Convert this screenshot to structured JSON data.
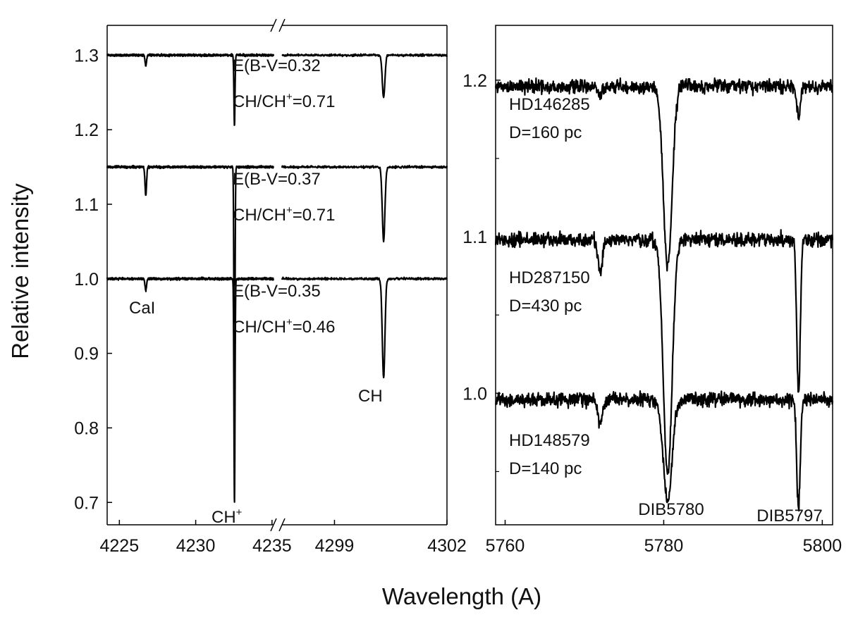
{
  "figure": {
    "ylabel": "Relative intensity",
    "xlabel": "Wavelength (A)"
  },
  "chart_data": [
    {
      "type": "line",
      "title": "",
      "xlabel": "Wavelength (A)",
      "ylabel": "Relative intensity",
      "ylim": [
        0.67,
        1.34
      ],
      "broken_x_axis": true,
      "x_segments": [
        {
          "xlim": [
            4224.2,
            4235.1
          ],
          "ticks": [
            4225,
            4230,
            4235
          ]
        },
        {
          "xlim": [
            4297.6,
            4302.0
          ],
          "ticks": [
            4299,
            4302
          ]
        }
      ],
      "x_tick_labels": [
        "4225",
        "4230",
        "4235",
        "4299",
        "4302"
      ],
      "y_ticks": [
        0.7,
        0.8,
        0.9,
        1.0,
        1.1,
        1.2,
        1.3
      ],
      "y_tick_labels": [
        "0.7",
        "0.8",
        "0.9",
        "1.0",
        "1.1",
        "1.2",
        "1.3"
      ],
      "grid": false,
      "lines": [
        {
          "label": "CaI",
          "x": 4226.73
        },
        {
          "label": "CH⁺",
          "x": 4232.54
        },
        {
          "label": "CH",
          "x": 4300.31
        }
      ],
      "series": [
        {
          "offset": 1.3,
          "depths": {
            "CaI": 0.014,
            "CH⁺": 0.095,
            "CH": 0.057
          },
          "annotations": [
            "E(B-V=0.32",
            "CH/CH",
            "+",
            "=0.71"
          ]
        },
        {
          "offset": 1.15,
          "depths": {
            "CaI": 0.038,
            "CH⁺": 0.35,
            "CH": 0.1
          },
          "annotations": [
            "E(B-V=0.37",
            "CH/CH",
            "+",
            "=0.71"
          ]
        },
        {
          "offset": 1.0,
          "depths": {
            "CaI": 0.016,
            "CH⁺": 0.3,
            "CH": 0.133
          },
          "annotations": [
            "E(B-V=0.35",
            "CH/CH",
            "+",
            "=0.46"
          ]
        }
      ],
      "annotations": {
        "cai": "CaI",
        "ch_plus": "CH",
        "ch_plus_sup": "+",
        "ch": "CH"
      }
    },
    {
      "type": "line",
      "title": "",
      "xlabel": "Wavelength (A)",
      "ylabel": "",
      "xlim": [
        5758.8,
        5801.3
      ],
      "ylim": [
        0.916,
        1.235
      ],
      "x_ticks": [
        5760,
        5780,
        5800
      ],
      "x_tick_labels": [
        "5760",
        "5780",
        "5800"
      ],
      "y_ticks": [
        1.0,
        1.1,
        1.2
      ],
      "y_tick_labels": [
        "1.0",
        "1.1",
        "1.2"
      ],
      "grid": false,
      "lines": [
        {
          "label": "DIB5780",
          "x": 5780.5
        },
        {
          "label": "DIB5797",
          "x": 5797.0
        },
        {
          "label": "",
          "x": 5772.0
        }
      ],
      "series": [
        {
          "name": "HD146285",
          "distance": "D=160 pc",
          "offset": 1.196,
          "depths": {
            "DIB5780": 0.115,
            "DIB5797": 0.02,
            "5772": 0.005
          }
        },
        {
          "name": "HD287150",
          "distance": "D=430 pc",
          "offset": 1.098,
          "depths": {
            "DIB5780": 0.15,
            "DIB5797": 0.098,
            "5772": 0.02
          }
        },
        {
          "name": "HD148579",
          "distance": "D=140 pc",
          "offset": 0.996,
          "depths": {
            "DIB5780": 0.065,
            "DIB5797": 0.07,
            "5772": 0.015
          }
        }
      ],
      "annotations": {
        "dib5780": "DIB5780",
        "dib5797": "DIB5797"
      }
    }
  ]
}
